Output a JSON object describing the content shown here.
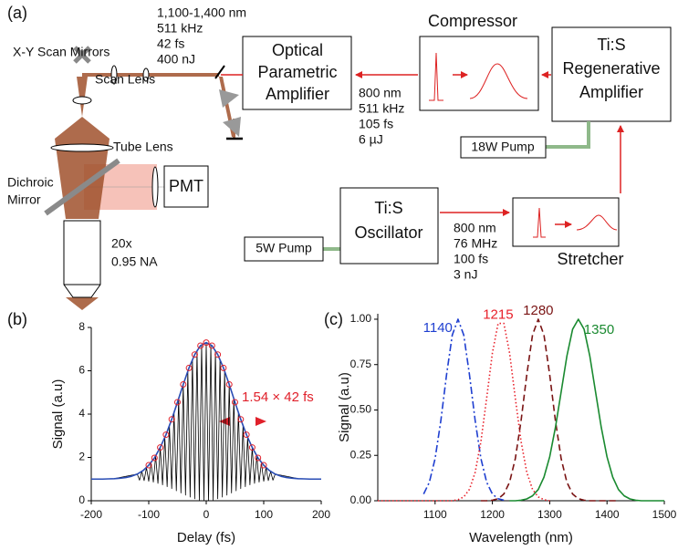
{
  "panel_a": {
    "label": "(a)",
    "opa_output": [
      "1,100-1,400 nm",
      "511 kHz",
      "42 fs",
      "400 nJ"
    ],
    "opa": [
      "Optical",
      "Parametric",
      "Amplifier"
    ],
    "compressor": "Compressor",
    "regen": [
      "Ti:S",
      "Regenerative",
      "Amplifier"
    ],
    "regen_output": [
      "800 nm",
      "511 kHz",
      "105 fs",
      "6 µJ"
    ],
    "pump_18w": "18W Pump",
    "oscillator": [
      "Ti:S",
      "Oscillator"
    ],
    "pump_5w": "5W Pump",
    "oscillator_output": [
      "800 nm",
      "76 MHz",
      "100 fs",
      "3 nJ"
    ],
    "stretcher": "Stretcher",
    "scan_mirrors": "X-Y Scan Mirrors",
    "scan_lens": "Scan Lens",
    "tube_lens": "Tube Lens",
    "dichroic": [
      "Dichroic",
      "Mirror"
    ],
    "pmt": "PMT",
    "objective": [
      "20x",
      "0.95 NA"
    ]
  },
  "chart_data": [
    {
      "type": "line",
      "label": "(b)",
      "xlabel": "Delay (fs)",
      "ylabel": "Signal (a.u)",
      "annotation": "1.54 × 42 fs",
      "xlim": [
        -200,
        200
      ],
      "xticks": [
        -200,
        -100,
        0,
        100,
        200
      ],
      "ylim": [
        0,
        8
      ],
      "yticks": [
        0,
        2,
        4,
        6,
        8
      ],
      "series": [
        {
          "color": "#000000",
          "style": "solid",
          "x": [
            -200,
            -160,
            -120,
            -116,
            -112,
            -108,
            -104,
            -100,
            -96,
            -92,
            -88,
            -84,
            -80,
            -76,
            -72,
            -68,
            -64,
            -60,
            -56,
            -52,
            -48,
            -44,
            -40,
            -36,
            -32,
            -28,
            -24,
            -20,
            -16,
            -12,
            -8,
            -4,
            0,
            4,
            8,
            12,
            16,
            20,
            24,
            28,
            32,
            36,
            40,
            44,
            48,
            52,
            56,
            60,
            64,
            68,
            72,
            76,
            80,
            84,
            88,
            92,
            96,
            100,
            104,
            108,
            112,
            116,
            120,
            160,
            200
          ],
          "values": [
            1,
            1.02,
            1.23,
            0.95,
            1.35,
            0.93,
            1.53,
            0.9,
            1.76,
            0.86,
            2.06,
            0.8,
            2.46,
            0.73,
            2.92,
            0.65,
            3.46,
            0.56,
            4.07,
            0.46,
            4.72,
            0.36,
            5.37,
            0.26,
            5.98,
            0.17,
            6.52,
            0.09,
            6.94,
            0.03,
            7.21,
            0,
            7.3,
            0,
            7.21,
            0.03,
            6.94,
            0.09,
            6.52,
            0.17,
            5.98,
            0.26,
            5.37,
            0.36,
            4.72,
            0.46,
            4.07,
            0.56,
            3.46,
            0.65,
            2.92,
            0.73,
            2.46,
            0.8,
            2.06,
            0.86,
            1.76,
            0.9,
            1.53,
            0.93,
            1.35,
            0.95,
            1.23,
            1.02,
            1
          ]
        },
        {
          "color": "#2a4db5",
          "style": "solid",
          "x": [
            -200,
            -190,
            -180,
            -170,
            -160,
            -150,
            -140,
            -130,
            -120,
            -110,
            -100,
            -90,
            -80,
            -70,
            -60,
            -50,
            -40,
            -30,
            -20,
            -10,
            0,
            10,
            20,
            30,
            40,
            50,
            60,
            70,
            80,
            90,
            100,
            110,
            120,
            130,
            140,
            150,
            160,
            170,
            180,
            190,
            200
          ],
          "values": [
            1,
            1,
            1,
            1.01,
            1.02,
            1.04,
            1.07,
            1.13,
            1.23,
            1.39,
            1.64,
            1.98,
            2.46,
            3.05,
            3.76,
            4.55,
            5.37,
            6.13,
            6.75,
            7.16,
            7.3,
            7.16,
            6.75,
            6.13,
            5.37,
            4.55,
            3.76,
            3.05,
            2.46,
            1.98,
            1.64,
            1.39,
            1.23,
            1.13,
            1.07,
            1.04,
            1.02,
            1.01,
            1,
            1,
            1
          ]
        },
        {
          "color": "#e0202a",
          "marker": "circle",
          "x": [
            -100,
            -90,
            -80,
            -70,
            -60,
            -50,
            -40,
            -30,
            -20,
            -10,
            0,
            10,
            20,
            30,
            40,
            50,
            60,
            70,
            80,
            90,
            100
          ],
          "values": [
            1.64,
            1.98,
            2.46,
            3.05,
            3.76,
            4.55,
            5.37,
            6.13,
            6.75,
            7.16,
            7.3,
            7.16,
            6.75,
            6.13,
            5.37,
            4.55,
            3.76,
            3.05,
            2.46,
            1.98,
            1.64
          ]
        }
      ]
    },
    {
      "type": "line",
      "label": "(c)",
      "xlabel": "Wavelength (nm)",
      "ylabel": "Signal (a.u)",
      "xlim": [
        1000,
        1500
      ],
      "xticks": [
        1100,
        1200,
        1300,
        1400,
        1500
      ],
      "ylim": [
        0,
        1.03
      ],
      "yticks": [
        {
          "value": 0,
          "label": "0.00"
        },
        {
          "value": 0.25,
          "label": "0.25"
        },
        {
          "value": 0.5,
          "label": "0.50"
        },
        {
          "value": 0.75,
          "label": "0.75"
        },
        {
          "value": 1,
          "label": "1.00"
        }
      ],
      "x": [
        1000,
        1010,
        1020,
        1030,
        1040,
        1050,
        1060,
        1070,
        1080,
        1090,
        1100,
        1110,
        1120,
        1130,
        1140,
        1150,
        1160,
        1170,
        1180,
        1190,
        1200,
        1210,
        1220,
        1230,
        1240,
        1250,
        1260,
        1270,
        1280,
        1290,
        1300,
        1310,
        1320,
        1330,
        1340,
        1350,
        1360,
        1370,
        1380,
        1390,
        1400,
        1410,
        1420,
        1430,
        1440,
        1450,
        1460,
        1470,
        1480,
        1490,
        1500
      ],
      "series": [
        {
          "name": "1140",
          "color": "#1f3fd0",
          "style": "dashdot",
          "values": [
            null,
            null,
            null,
            null,
            null,
            null,
            null,
            null,
            0.037,
            0.102,
            0.232,
            0.44,
            0.694,
            0.913,
            1,
            0.913,
            0.694,
            0.44,
            0.232,
            0.102,
            0.037,
            0.011,
            0.003,
            null,
            null,
            null,
            null,
            null,
            null,
            null,
            null,
            null,
            null,
            null,
            null,
            null,
            null,
            null,
            null,
            null,
            null,
            null,
            null,
            null,
            null,
            null,
            null,
            null,
            null,
            null,
            null
          ]
        },
        {
          "name": "1215",
          "color": "#e8202a",
          "style": "dotted",
          "values": [
            0,
            0,
            0,
            0,
            0,
            0,
            0,
            0,
            0,
            0,
            0,
            0,
            0,
            0,
            0.006,
            0.021,
            0.063,
            0.157,
            0.327,
            0.565,
            0.814,
            0.977,
            0.977,
            0.814,
            0.565,
            0.327,
            0.157,
            0.063,
            0.021,
            0.006,
            0,
            null,
            null,
            null,
            null,
            null,
            null,
            null,
            null,
            null,
            null,
            null,
            null,
            null,
            null,
            null,
            null,
            null,
            null,
            null,
            null
          ]
        },
        {
          "name": "1280",
          "color": "#7a1414",
          "style": "dashed",
          "values": [
            null,
            null,
            null,
            null,
            null,
            null,
            null,
            null,
            null,
            null,
            null,
            null,
            null,
            null,
            null,
            null,
            null,
            null,
            0,
            0,
            0.003,
            0.011,
            0.037,
            0.102,
            0.232,
            0.44,
            0.694,
            0.913,
            1,
            0.913,
            0.694,
            0.44,
            0.232,
            0.102,
            0.037,
            0.011,
            0.003,
            0,
            0,
            0,
            0,
            0,
            0,
            null,
            null,
            null,
            null,
            null,
            null,
            null,
            null
          ]
        },
        {
          "name": "1350",
          "color": "#1a8a30",
          "style": "solid",
          "values": [
            null,
            null,
            null,
            null,
            null,
            null,
            null,
            null,
            null,
            null,
            null,
            null,
            null,
            null,
            null,
            null,
            null,
            null,
            null,
            null,
            null,
            null,
            null,
            0,
            0,
            0.003,
            0.01,
            0.027,
            0.062,
            0.13,
            0.242,
            0.404,
            0.6,
            0.797,
            0.945,
            1,
            0.945,
            0.797,
            0.6,
            0.404,
            0.242,
            0.13,
            0.062,
            0.027,
            0.01,
            0.003,
            0,
            0,
            0,
            0,
            0
          ]
        }
      ]
    }
  ]
}
